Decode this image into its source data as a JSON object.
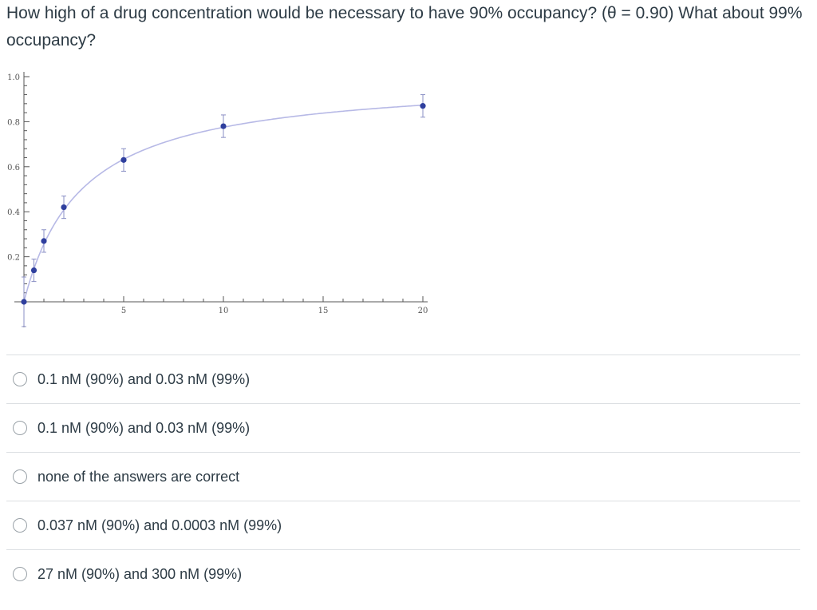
{
  "question": {
    "text": "How high of a drug concentration would be necessary to have 90% occupancy? (θ = 0.90)  What about 99% occupancy?"
  },
  "chart_data": {
    "type": "scatter",
    "x_ticks": [
      "5",
      "10",
      "15",
      "20"
    ],
    "y_ticks": [
      "1.0",
      "0.8",
      "0.6",
      "0.4",
      "0.2"
    ],
    "xlim": [
      0,
      20
    ],
    "ylim": [
      0,
      1.0
    ],
    "series": [
      {
        "points": [
          {
            "x": 0,
            "y": 0.0,
            "err": 0.11
          },
          {
            "x": 0.5,
            "y": 0.14,
            "err": 0.05
          },
          {
            "x": 1,
            "y": 0.27,
            "err": 0.05
          },
          {
            "x": 2,
            "y": 0.42,
            "err": 0.05
          },
          {
            "x": 5,
            "y": 0.63,
            "err": 0.05
          },
          {
            "x": 10,
            "y": 0.78,
            "err": 0.05
          },
          {
            "x": 20,
            "y": 0.87,
            "err": 0.05
          }
        ]
      }
    ],
    "fit_curve": {
      "Kd": 2.9,
      "Bmax": 1.0
    },
    "colors": {
      "points": "#2f3f9e",
      "curve": "#b7b9e6",
      "errorbars": "#8a8fc4",
      "axes": "#555555"
    }
  },
  "answers": [
    {
      "label": "0.1 nM (90%) and 0.03 nM (99%)"
    },
    {
      "label": "0.1 nM (90%) and 0.03 nM (99%)"
    },
    {
      "label": "none of the answers are correct"
    },
    {
      "label": "0.037 nM (90%) and 0.0003 nM (99%)"
    },
    {
      "label": "27 nM (90%) and 300 nM (99%)"
    }
  ]
}
